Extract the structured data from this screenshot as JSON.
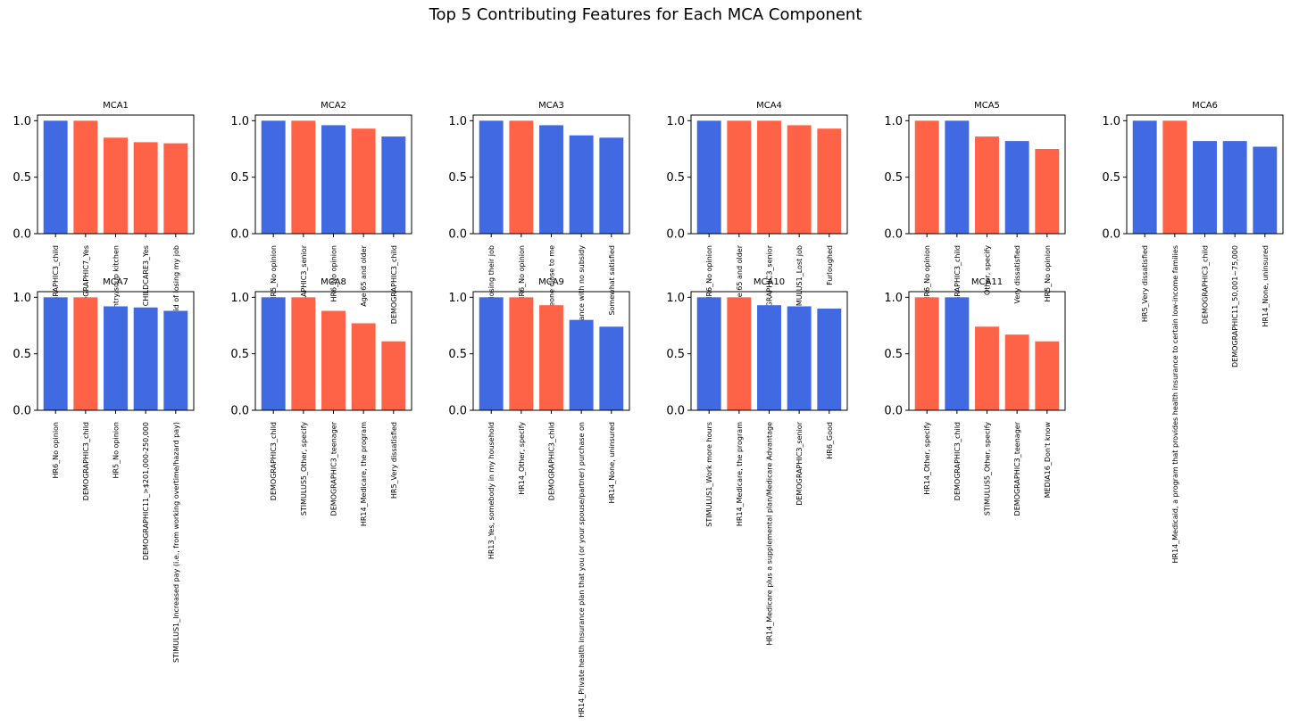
{
  "figure": {
    "title": "Top 5 Contributing Features for Each MCA Component"
  },
  "colors": {
    "blue": "#4169e1",
    "red": "#ff6347"
  },
  "chart_data": [
    {
      "type": "bar",
      "title": "MCA1",
      "ylim": [
        0,
        1.05
      ],
      "yticks": [
        "0.0",
        "0.5",
        "1.0"
      ],
      "categories": [
        "DEMOGRAPHIC3_child",
        "DEMOGRAPHIC7_Yes",
        "Food pantry/soup kitchen",
        "CHILDCARE3_Yes",
        "Afraid of losing my job"
      ],
      "values": [
        1.0,
        1.0,
        0.85,
        0.81,
        0.8
      ],
      "colors": [
        "blue",
        "red",
        "red",
        "red",
        "red"
      ]
    },
    {
      "type": "bar",
      "title": "MCA2",
      "ylim": [
        0,
        1.05
      ],
      "yticks": [
        "0.0",
        "0.5",
        "1.0"
      ],
      "categories": [
        "HR5_No opinion",
        "DEMOGRAPHIC3_senior",
        "HR6_No opinion",
        "Age 65 and older",
        "DEMOGRAPHIC3_child"
      ],
      "values": [
        1.0,
        1.0,
        0.96,
        0.93,
        0.86
      ],
      "colors": [
        "blue",
        "red",
        "blue",
        "red",
        "blue"
      ]
    },
    {
      "type": "bar",
      "title": "MCA3",
      "ylim": [
        0,
        1.05
      ],
      "yticks": [
        "0.0",
        "0.5",
        "1.0"
      ],
      "categories": [
        "Someone losing their job",
        "HR6_No opinion",
        "Someone close to me",
        "Health insurance with no subsidy",
        "Somewhat satisfied"
      ],
      "values": [
        1.0,
        1.0,
        0.96,
        0.87,
        0.85
      ],
      "colors": [
        "blue",
        "red",
        "blue",
        "blue",
        "blue"
      ]
    },
    {
      "type": "bar",
      "title": "MCA4",
      "ylim": [
        0,
        1.05
      ],
      "yticks": [
        "0.0",
        "0.5",
        "1.0"
      ],
      "categories": [
        "HR6_No opinion",
        "Age 65 and older",
        "DEMOGRAPHIC3_senior",
        "STIMULUS1_Lost job",
        "Furloughed"
      ],
      "values": [
        1.0,
        1.0,
        1.0,
        0.96,
        0.93
      ],
      "colors": [
        "blue",
        "red",
        "red",
        "red",
        "red"
      ]
    },
    {
      "type": "bar",
      "title": "MCA5",
      "ylim": [
        0,
        1.05
      ],
      "yticks": [
        "0.0",
        "0.5",
        "1.0"
      ],
      "categories": [
        "HR6_No opinion",
        "DEMOGRAPHIC3_child",
        "Other, specify",
        "Very dissatisfied",
        "HR5_No opinion"
      ],
      "values": [
        1.0,
        1.0,
        0.86,
        0.82,
        0.75
      ],
      "colors": [
        "red",
        "blue",
        "red",
        "blue",
        "red"
      ]
    },
    {
      "type": "bar",
      "title": "MCA6",
      "ylim": [
        0,
        1.05
      ],
      "yticks": [
        "0.0",
        "0.5",
        "1.0"
      ],
      "categories": [
        "HR5_Very dissatisfied",
        "HR14_Medicaid, a program that provides health insurance to certain low-income families",
        "DEMOGRAPHIC3_child",
        "DEMOGRAPHIC11_50,001~75,000",
        "HR14_None, uninsured"
      ],
      "values": [
        1.0,
        1.0,
        0.82,
        0.82,
        0.77
      ],
      "colors": [
        "blue",
        "red",
        "blue",
        "blue",
        "blue"
      ]
    },
    {
      "type": "bar",
      "title": "MCA7",
      "ylim": [
        0,
        1.05
      ],
      "yticks": [
        "0.0",
        "0.5",
        "1.0"
      ],
      "categories": [
        "HR6_No opinion",
        "DEMOGRAPHIC3_child",
        "HR5_No opinion",
        "DEMOGRAPHIC11_>$201,000-250,000",
        "STIMULUS1_Increased pay (i.e., from working overtime/hazard pay)"
      ],
      "values": [
        1.0,
        1.0,
        0.92,
        0.91,
        0.88
      ],
      "colors": [
        "blue",
        "red",
        "blue",
        "blue",
        "blue"
      ]
    },
    {
      "type": "bar",
      "title": "MCA8",
      "ylim": [
        0,
        1.05
      ],
      "yticks": [
        "0.0",
        "0.5",
        "1.0"
      ],
      "categories": [
        "DEMOGRAPHIC3_child",
        "STIMULUS5_Other, specify",
        "DEMOGRAPHIC3_teenager",
        "HR14_Medicare, the program",
        "HR5_Very dissatisfied"
      ],
      "values": [
        1.0,
        1.0,
        0.88,
        0.77,
        0.61
      ],
      "colors": [
        "blue",
        "red",
        "red",
        "red",
        "red"
      ]
    },
    {
      "type": "bar",
      "title": "MCA9",
      "ylim": [
        0,
        1.05
      ],
      "yticks": [
        "0.0",
        "0.5",
        "1.0"
      ],
      "categories": [
        "HR13_Yes, somebody in my household",
        "HR14_Other, specify",
        "DEMOGRAPHIC3_child",
        "HR14_Private health insurance plan that you (or your spouse/partner) purchase on",
        "HR14_None, uninsured"
      ],
      "values": [
        1.0,
        1.0,
        0.93,
        0.8,
        0.74
      ],
      "colors": [
        "blue",
        "red",
        "red",
        "blue",
        "blue"
      ]
    },
    {
      "type": "bar",
      "title": "MCA10",
      "ylim": [
        0,
        1.05
      ],
      "yticks": [
        "0.0",
        "0.5",
        "1.0"
      ],
      "categories": [
        "STIMULUS1_Work more hours",
        "HR14_Medicare, the program",
        "HR14_Medicare plus a supplemental plan/Medicare Advantage",
        "DEMOGRAPHIC3_senior",
        "HR6_Good"
      ],
      "values": [
        1.0,
        1.0,
        0.93,
        0.92,
        0.9
      ],
      "colors": [
        "blue",
        "red",
        "blue",
        "blue",
        "blue"
      ]
    },
    {
      "type": "bar",
      "title": "MCA11",
      "ylim": [
        0,
        1.05
      ],
      "yticks": [
        "0.0",
        "0.5",
        "1.0"
      ],
      "categories": [
        "HR14_Other, specify",
        "DEMOGRAPHIC3_child",
        "STIMULUS5_Other, specify",
        "DEMOGRAPHIC3_teenager",
        "MEDIA16_Don't know"
      ],
      "values": [
        1.0,
        1.0,
        0.74,
        0.67,
        0.61
      ],
      "colors": [
        "red",
        "blue",
        "red",
        "red",
        "red"
      ]
    }
  ]
}
